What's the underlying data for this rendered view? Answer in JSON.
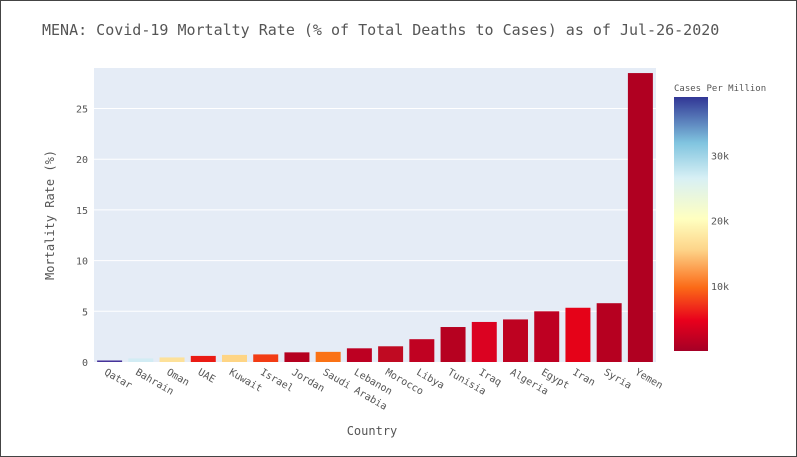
{
  "chart_data": {
    "type": "bar",
    "title": "MENA: Covid-19 Mortalty Rate (% of Total Deaths to Cases) as of Jul-26-2020",
    "xlabel": "Country",
    "ylabel": "Mortality Rate (%)",
    "ylim": [
      0,
      29
    ],
    "yticks": [
      0,
      5,
      10,
      15,
      20,
      25
    ],
    "grid": true,
    "categories": [
      "Qatar",
      "Bahrain",
      "Oman",
      "UAE",
      "Kuwait",
      "Israel",
      "Jordan",
      "Saudi Arabia",
      "Lebanon",
      "Morocco",
      "Libya",
      "Tunisia",
      "Iraq",
      "Algeria",
      "Egypt",
      "Iran",
      "Syria",
      "Yemen"
    ],
    "values": [
      0.15,
      0.35,
      0.45,
      0.6,
      0.7,
      0.75,
      0.95,
      1.0,
      1.35,
      1.55,
      2.25,
      3.45,
      3.95,
      4.2,
      5.0,
      5.35,
      5.8,
      28.5
    ],
    "colors": [
      "#46339a",
      "#d2ecf4",
      "#fde19a",
      "#ea1b14",
      "#fed585",
      "#f23c14",
      "#b5001f",
      "#fa7215",
      "#bd0022",
      "#c00a22",
      "#c00222",
      "#b60120",
      "#db0221",
      "#be0221",
      "#be0022",
      "#e50218",
      "#b60020",
      "#b00021"
    ],
    "colorbar": {
      "title": "Cases Per Million",
      "ticks": [
        "10k",
        "20k",
        "30k"
      ],
      "tick_values": [
        10000,
        20000,
        30000
      ],
      "range": [
        0,
        39000
      ]
    }
  }
}
